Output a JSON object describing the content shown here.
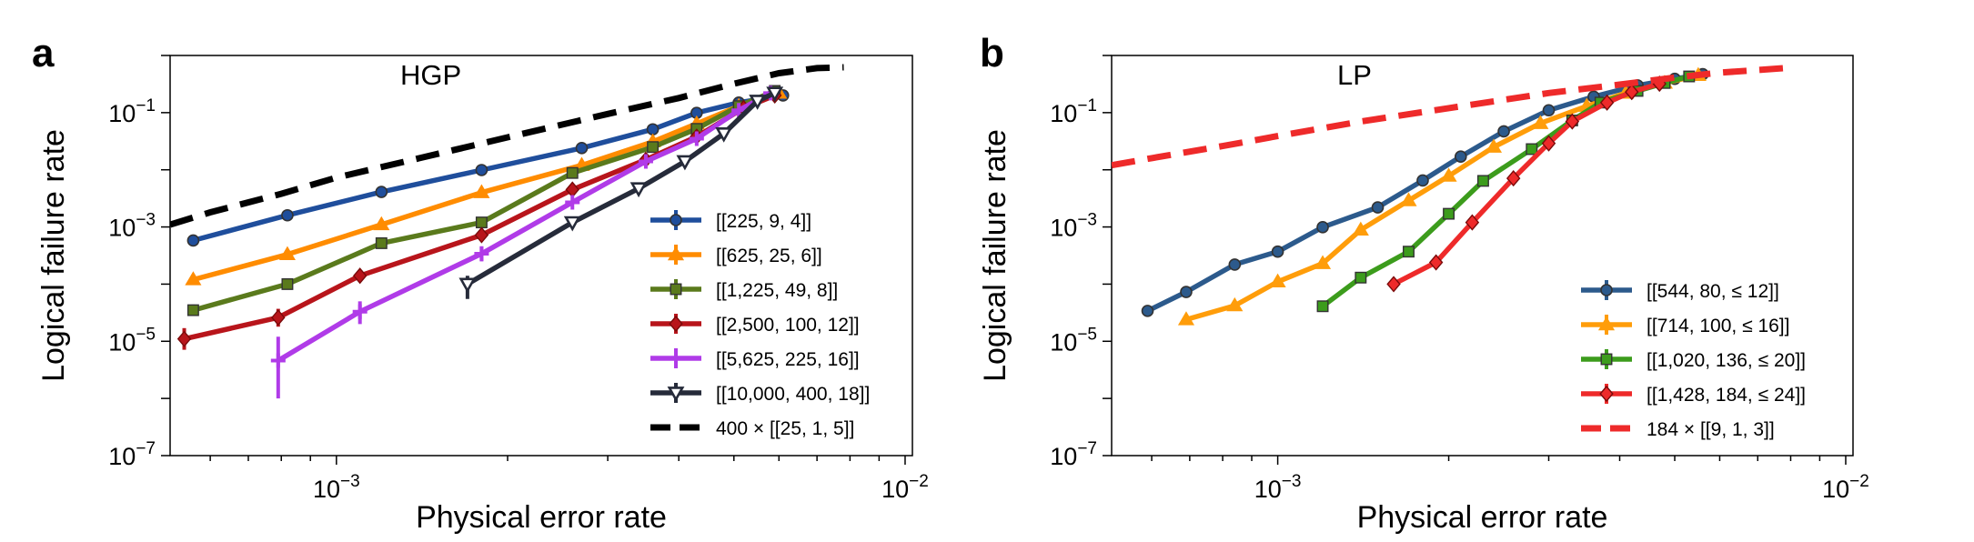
{
  "chart_data": [
    {
      "type": "line",
      "panel_label": "a",
      "title": "HGP",
      "xlabel": "Physical error rate",
      "ylabel": "Logical failure rate",
      "x_scale": "log",
      "y_scale": "log",
      "xlim": [
        0.00051,
        0.0103
      ],
      "ylim": [
        1e-07,
        1.0
      ],
      "xticks": [
        {
          "value": 0.001,
          "base": "10",
          "exp": "−3"
        },
        {
          "value": 0.01,
          "base": "10",
          "exp": "−2"
        }
      ],
      "yticks": [
        {
          "value": 0.1,
          "base": "10",
          "exp": "−1"
        },
        {
          "value": 0.001,
          "base": "10",
          "exp": "−3"
        },
        {
          "value": 1e-05,
          "base": "10",
          "exp": "−5"
        },
        {
          "value": 1e-07,
          "base": "10",
          "exp": "−7"
        }
      ],
      "legend_position": "lower-right",
      "series": [
        {
          "name": "[[225, 9, 4]]",
          "color": "#1f4e9c",
          "marker": "circle",
          "points": [
            [
              0.00056,
              0.00058
            ],
            [
              0.00082,
              0.0016
            ],
            [
              0.0012,
              0.0041
            ],
            [
              0.0018,
              0.0099
            ],
            [
              0.0027,
              0.024
            ],
            [
              0.0036,
              0.051
            ],
            [
              0.0043,
              0.099
            ],
            [
              0.0051,
              0.15
            ],
            [
              0.0061,
              0.2
            ]
          ],
          "errors": [
            [
              0.00056,
              0.00049,
              0.00069
            ]
          ]
        },
        {
          "name": "[[625, 25, 6]]",
          "color": "#ff8c00",
          "marker": "triangle-up",
          "points": [
            [
              0.00056,
              0.00012
            ],
            [
              0.00082,
              0.00033
            ],
            [
              0.0012,
              0.0011
            ],
            [
              0.0018,
              0.004
            ],
            [
              0.0027,
              0.012
            ],
            [
              0.0036,
              0.031
            ],
            [
              0.0043,
              0.064
            ],
            [
              0.0051,
              0.13
            ],
            [
              0.006,
              0.22
            ]
          ]
        },
        {
          "name": "[[1,225, 49, 8]]",
          "color": "#5a7a1c",
          "marker": "square",
          "points": [
            [
              0.00056,
              3.5e-05
            ],
            [
              0.00082,
              0.0001
            ],
            [
              0.0012,
              0.00052
            ],
            [
              0.0018,
              0.0012
            ],
            [
              0.0026,
              0.0088
            ],
            [
              0.0036,
              0.025
            ],
            [
              0.0043,
              0.052
            ],
            [
              0.0051,
              0.13
            ],
            [
              0.0059,
              0.24
            ]
          ],
          "errors": [
            [
              0.00056,
              2.8e-05,
              4.4e-05
            ]
          ]
        },
        {
          "name": "[[2,500, 100, 12]]",
          "color": "#b8151b",
          "marker": "diamond",
          "points": [
            [
              0.00054,
              1.1e-05
            ],
            [
              0.00079,
              2.6e-05
            ],
            [
              0.0011,
              0.00014
            ],
            [
              0.0018,
              0.00072
            ],
            [
              0.0026,
              0.0045
            ],
            [
              0.0035,
              0.015
            ],
            [
              0.0043,
              0.038
            ],
            [
              0.0052,
              0.12
            ],
            [
              0.0059,
              0.2
            ]
          ],
          "errors": [
            [
              0.00054,
              7.1e-06,
              1.7e-05
            ],
            [
              0.00079,
              1.8e-05,
              3.7e-05
            ]
          ]
        },
        {
          "name": "[[5,625, 225, 16]]",
          "color": "#b03be8",
          "marker": "plus",
          "points": [
            [
              0.00079,
              4.6e-06
            ],
            [
              0.0011,
              3.3e-05
            ],
            [
              0.0018,
              0.00034
            ],
            [
              0.0026,
              0.0027
            ],
            [
              0.0035,
              0.014
            ],
            [
              0.0043,
              0.035
            ],
            [
              0.0051,
              0.11
            ],
            [
              0.0058,
              0.22
            ]
          ],
          "errors": [
            [
              0.00079,
              1e-06,
              1.2e-05
            ],
            [
              0.0011,
              2e-05,
              5e-05
            ],
            [
              0.0018,
              0.00025,
              0.00046
            ]
          ]
        },
        {
          "name": "[[10,000, 400, 18]]",
          "color": "#262b3a",
          "marker": "triangle-down",
          "points": [
            [
              0.0017,
              0.0001
            ],
            [
              0.0026,
              0.0012
            ],
            [
              0.0034,
              0.0047
            ],
            [
              0.0041,
              0.014
            ],
            [
              0.0048,
              0.043
            ],
            [
              0.0055,
              0.16
            ],
            [
              0.0059,
              0.22
            ]
          ],
          "errors": [
            [
              0.0017,
              5.5e-05,
              0.00014
            ]
          ]
        },
        {
          "name": "400 × [[25, 1, 5]]",
          "color": "#000000",
          "marker": "none",
          "dashed": true,
          "points": [
            [
              0.00051,
              0.0011
            ],
            [
              0.0006,
              0.0018
            ],
            [
              0.0008,
              0.0038
            ],
            [
              0.001,
              0.0073
            ],
            [
              0.0014,
              0.016
            ],
            [
              0.002,
              0.037
            ],
            [
              0.003,
              0.095
            ],
            [
              0.004,
              0.18
            ],
            [
              0.005,
              0.32
            ],
            [
              0.006,
              0.49
            ],
            [
              0.007,
              0.6
            ],
            [
              0.0078,
              0.62
            ]
          ]
        }
      ]
    },
    {
      "type": "line",
      "panel_label": "b",
      "title": "LP",
      "xlabel": "Physical error rate",
      "ylabel": "Logical failure rate",
      "x_scale": "log",
      "y_scale": "log",
      "xlim": [
        0.00051,
        0.0103
      ],
      "ylim": [
        1e-07,
        1.0
      ],
      "xticks": [
        {
          "value": 0.001,
          "base": "10",
          "exp": "−3"
        },
        {
          "value": 0.01,
          "base": "10",
          "exp": "−2"
        }
      ],
      "yticks": [
        {
          "value": 0.1,
          "base": "10",
          "exp": "−1"
        },
        {
          "value": 0.001,
          "base": "10",
          "exp": "−3"
        },
        {
          "value": 1e-05,
          "base": "10",
          "exp": "−5"
        },
        {
          "value": 1e-07,
          "base": "10",
          "exp": "−7"
        }
      ],
      "legend_position": "lower-right",
      "series": [
        {
          "name": "[[544, 80, ≤ 12]]",
          "color": "#2c5a8c",
          "marker": "circle",
          "points": [
            [
              0.00059,
              3.4e-05
            ],
            [
              0.00069,
              7.3e-05
            ],
            [
              0.00084,
              0.00022
            ],
            [
              0.001,
              0.00037
            ],
            [
              0.0012,
              0.00099
            ],
            [
              0.0015,
              0.0022
            ],
            [
              0.0018,
              0.0065
            ],
            [
              0.0021,
              0.017
            ],
            [
              0.0025,
              0.047
            ],
            [
              0.003,
              0.11
            ],
            [
              0.0036,
              0.19
            ],
            [
              0.0043,
              0.3
            ],
            [
              0.005,
              0.39
            ],
            [
              0.0056,
              0.47
            ]
          ]
        },
        {
          "name": "[[714, 100, ≤ 16]]",
          "color": "#ff9d0a",
          "marker": "triangle-up",
          "points": [
            [
              0.00069,
              2.4e-05
            ],
            [
              0.00084,
              4.2e-05
            ],
            [
              0.001,
              0.00011
            ],
            [
              0.0012,
              0.00023
            ],
            [
              0.0014,
              0.00089
            ],
            [
              0.0017,
              0.0029
            ],
            [
              0.002,
              0.0078
            ],
            [
              0.0024,
              0.025
            ],
            [
              0.0029,
              0.065
            ],
            [
              0.0035,
              0.13
            ],
            [
              0.0041,
              0.22
            ],
            [
              0.0048,
              0.33
            ],
            [
              0.0055,
              0.45
            ]
          ]
        },
        {
          "name": "[[1,020, 136, ≤ 20]]",
          "color": "#3c9c1c",
          "marker": "square",
          "points": [
            [
              0.0012,
              4.1e-05
            ],
            [
              0.0014,
              0.00013
            ],
            [
              0.0017,
              0.00037
            ],
            [
              0.002,
              0.0017
            ],
            [
              0.0023,
              0.0064
            ],
            [
              0.0028,
              0.023
            ],
            [
              0.0033,
              0.073
            ],
            [
              0.0037,
              0.15
            ],
            [
              0.0043,
              0.24
            ],
            [
              0.0048,
              0.33
            ],
            [
              0.0053,
              0.43
            ]
          ]
        },
        {
          "name": "[[1,428, 184, ≤ 24]]",
          "color": "#ee2a2a",
          "marker": "diamond",
          "points": [
            [
              0.0016,
              0.0001
            ],
            [
              0.0019,
              0.00024
            ],
            [
              0.0022,
              0.0012
            ],
            [
              0.0026,
              0.0071
            ],
            [
              0.003,
              0.029
            ],
            [
              0.0033,
              0.07
            ],
            [
              0.0038,
              0.15
            ],
            [
              0.0042,
              0.23
            ],
            [
              0.0047,
              0.32
            ]
          ]
        },
        {
          "name": "184 × [[9, 1, 3]]",
          "color": "#ee2a2a",
          "marker": "none",
          "dashed": true,
          "points": [
            [
              0.00051,
              0.012
            ],
            [
              0.0006,
              0.016
            ],
            [
              0.0008,
              0.026
            ],
            [
              0.001,
              0.039
            ],
            [
              0.0014,
              0.07
            ],
            [
              0.002,
              0.12
            ],
            [
              0.003,
              0.22
            ],
            [
              0.004,
              0.31
            ],
            [
              0.005,
              0.41
            ],
            [
              0.006,
              0.5
            ],
            [
              0.0078,
              0.6
            ]
          ]
        }
      ]
    }
  ]
}
